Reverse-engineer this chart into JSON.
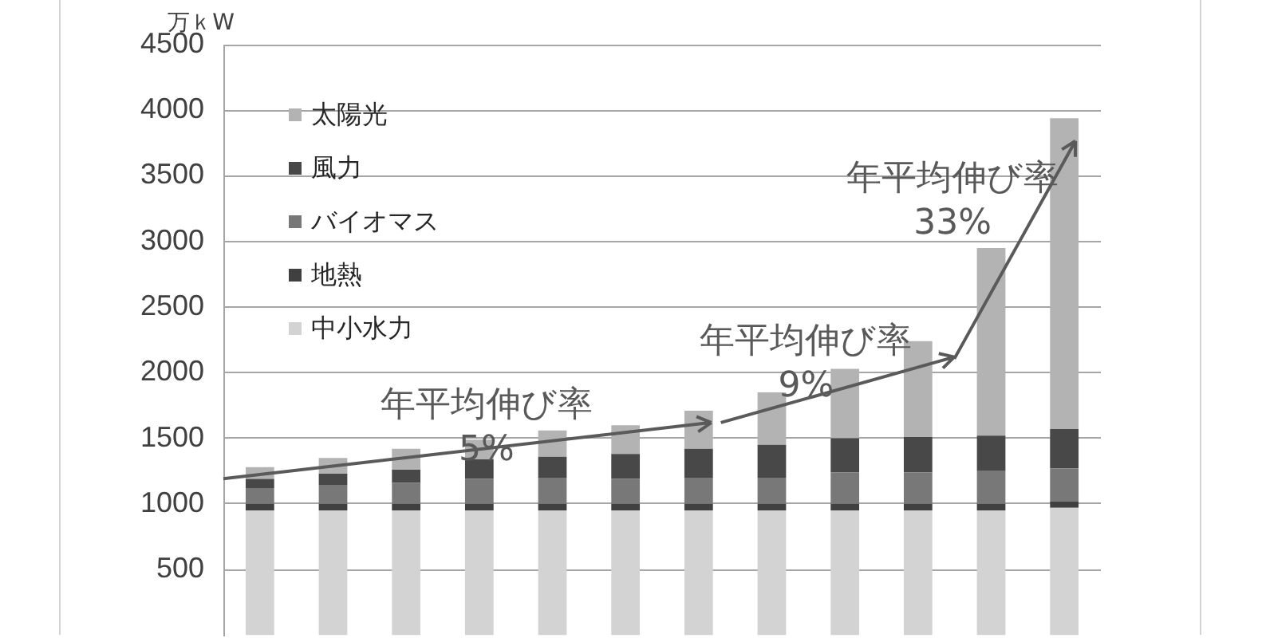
{
  "chart_data": {
    "type": "bar",
    "ylabel": "万ｋW",
    "categories": [
      null,
      null,
      null,
      null,
      null,
      null,
      null,
      null,
      null,
      null,
      null,
      null
    ],
    "series": [
      {
        "name": "中小水力",
        "color": "#d3d3d3",
        "values": [
          950,
          950,
          950,
          950,
          950,
          950,
          950,
          950,
          950,
          950,
          950,
          970
        ]
      },
      {
        "name": "地熱",
        "color": "#404040",
        "values": [
          50,
          50,
          50,
          50,
          50,
          50,
          50,
          50,
          50,
          50,
          50,
          50
        ]
      },
      {
        "name": "バイオマス",
        "color": "#787878",
        "values": [
          120,
          140,
          160,
          190,
          200,
          190,
          200,
          200,
          240,
          240,
          250,
          250
        ]
      },
      {
        "name": "風力",
        "color": "#484848",
        "values": [
          70,
          90,
          100,
          150,
          160,
          190,
          220,
          250,
          260,
          270,
          270,
          300
        ]
      },
      {
        "name": "太陽光",
        "color": "#b3b3b3",
        "values": [
          90,
          120,
          160,
          150,
          200,
          220,
          290,
          400,
          530,
          730,
          1430,
          2370
        ]
      }
    ],
    "stacked": true,
    "ylim": [
      0,
      4500
    ],
    "yticks": [
      500,
      1000,
      1500,
      2000,
      2500,
      3000,
      3500,
      4000,
      4500
    ],
    "grid": "y",
    "legend": "top left",
    "tick_labels": "y",
    "annotations": [
      "年平均伸び率\n5%",
      "年平均伸び率\n9%",
      "年平均伸び率\n33%"
    ]
  }
}
